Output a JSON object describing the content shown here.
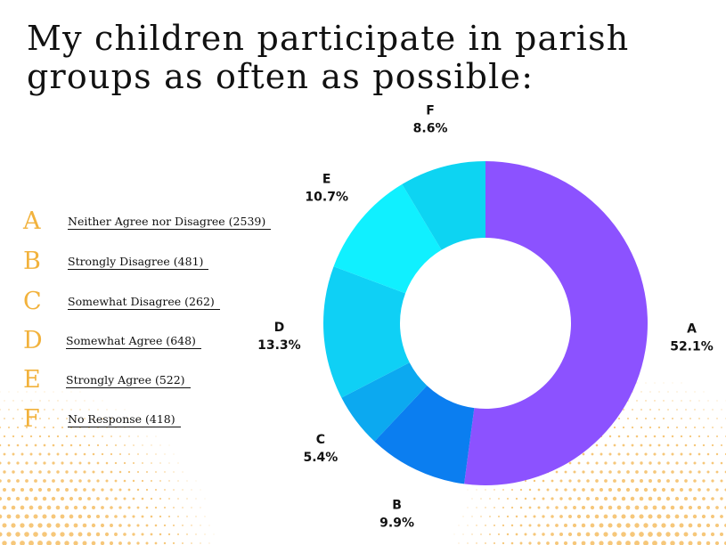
{
  "title": "My children participate in parish groups as often as possible:",
  "colors": {
    "legend_letter": "#f2b23c",
    "dots": "#f6c77a"
  },
  "legend": [
    {
      "letter": "A",
      "label": "Neither Agree nor Disagree (2539)"
    },
    {
      "letter": "B",
      "label": "Strongly Disagree (481)"
    },
    {
      "letter": "C",
      "label": "Somewhat Disagree (262)"
    },
    {
      "letter": "D",
      "label": "Somewhat Agree (648)"
    },
    {
      "letter": "E",
      "label": "Strongly Agree (522)"
    },
    {
      "letter": "F",
      "label": "No Response (418)"
    }
  ],
  "chart_data": {
    "type": "pie",
    "donut": true,
    "categories": [
      "A",
      "B",
      "C",
      "D",
      "E",
      "F"
    ],
    "values": [
      52.1,
      9.9,
      5.4,
      13.3,
      10.7,
      8.6
    ],
    "value_labels": [
      "52.1%",
      "9.9%",
      "5.4%",
      "13.3%",
      "10.7%",
      "8.6%"
    ],
    "colors": [
      "#8c52ff",
      "#0b7ef0",
      "#0ca9f0",
      "#0fd0f5",
      "#10f0ff",
      "#0dd4f2"
    ],
    "start": "top",
    "direction": "clockwise",
    "legend": "left"
  }
}
